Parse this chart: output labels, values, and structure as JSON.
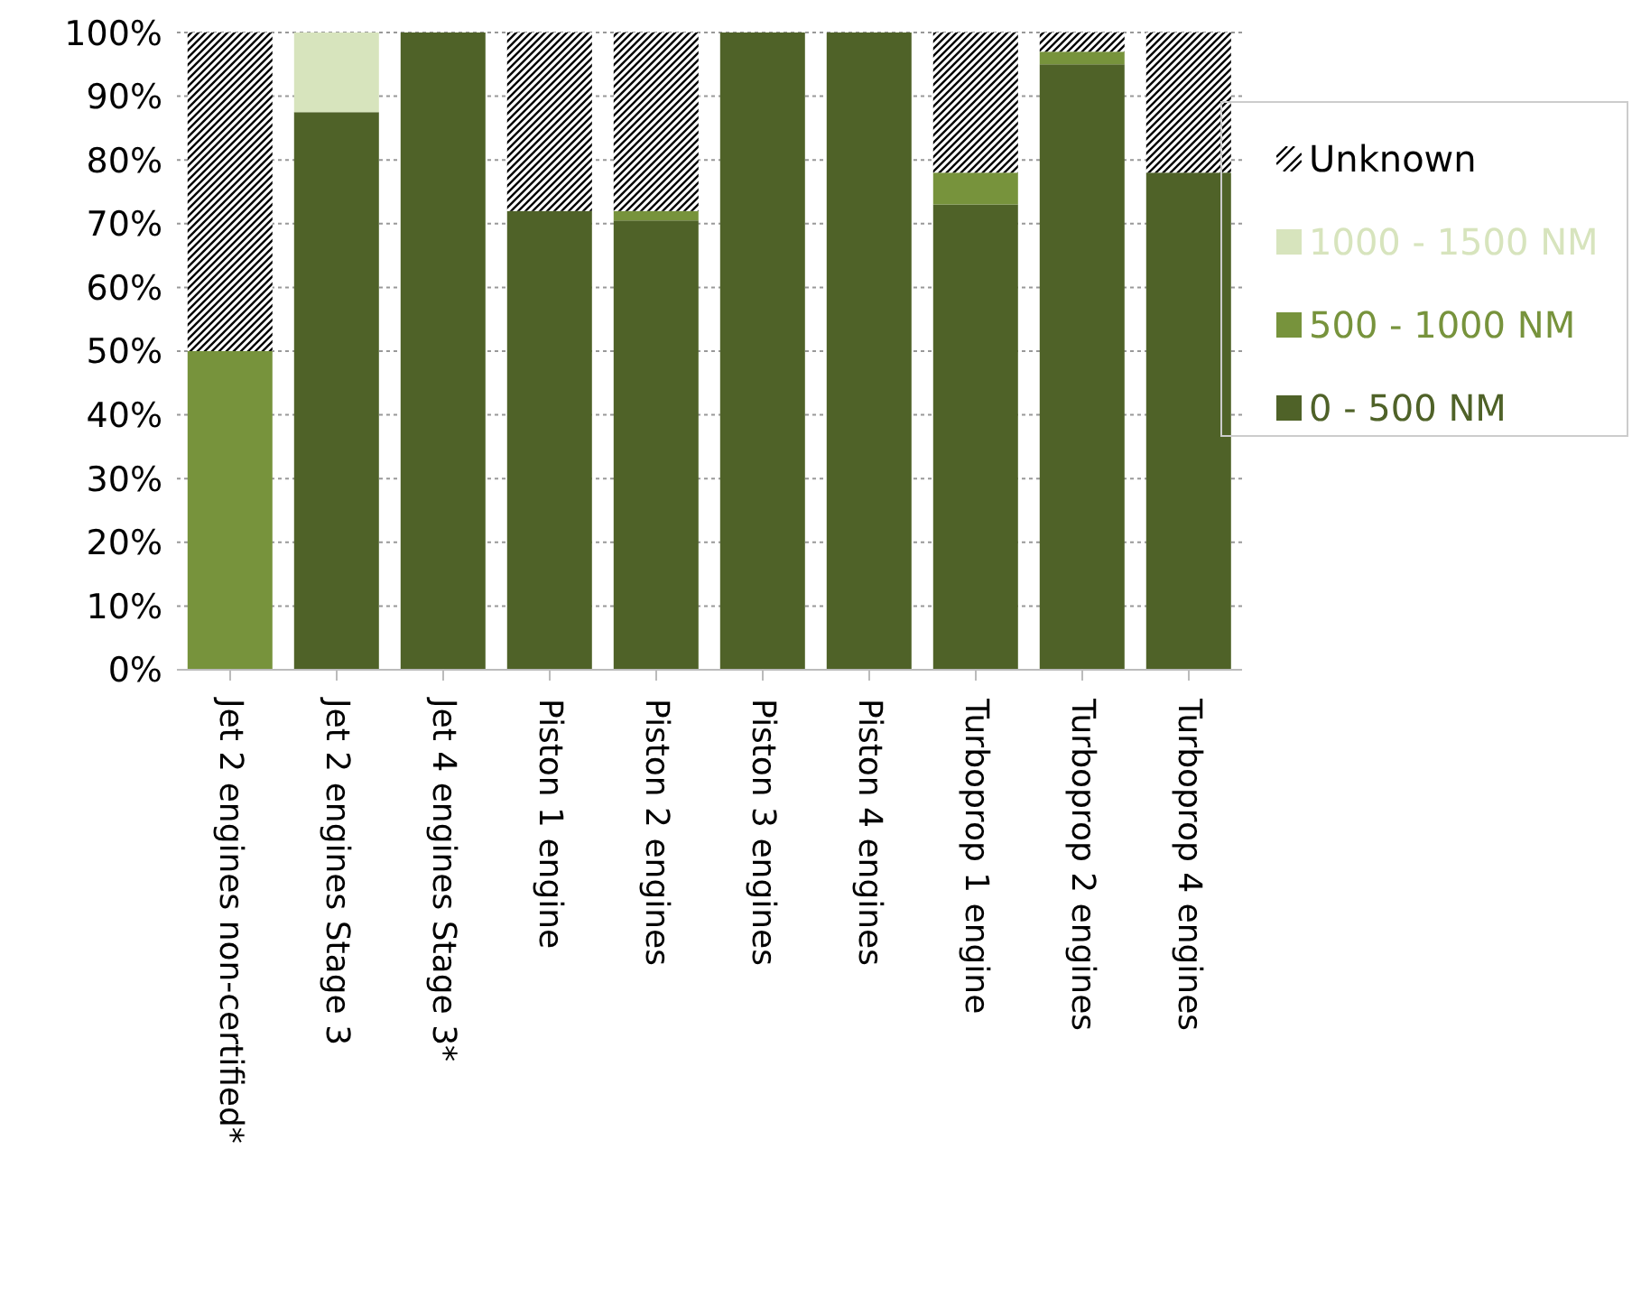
{
  "chart_data": {
    "type": "bar",
    "stacked": true,
    "categories": [
      "Jet 2 engines non-certified*",
      "Jet 2 engines Stage 3",
      "Jet 4 engines Stage 3*",
      "Piston 1 engine",
      "Piston 2 engines",
      "Piston 3 engines",
      "Piston 4 engines",
      "Turboprop 1 engine",
      "Turboprop 2 engines",
      "Turboprop 4 engines"
    ],
    "series": [
      {
        "name": "0 - 500 NM",
        "color": "#4f6228",
        "values": [
          0,
          87.5,
          100,
          72,
          70.5,
          100,
          100,
          73,
          95,
          78
        ]
      },
      {
        "name": "500 - 1000 NM",
        "color": "#77933c",
        "values": [
          50,
          0,
          0,
          0,
          1.5,
          0,
          0,
          5,
          2,
          0
        ]
      },
      {
        "name": "1000 - 1500 NM",
        "color": "#d7e4bd",
        "values": [
          0,
          12.5,
          0,
          0,
          0,
          0,
          0,
          0,
          0,
          0
        ]
      },
      {
        "name": "Unknown",
        "color": "#000000",
        "values": [
          50,
          0,
          0,
          28,
          28,
          0,
          0,
          22,
          3,
          22
        ]
      }
    ],
    "ylim": [
      0,
      100
    ],
    "yticks": [
      {
        "value": 0,
        "label": "0%"
      },
      {
        "value": 10,
        "label": "10%"
      },
      {
        "value": 20,
        "label": "20%"
      },
      {
        "value": 30,
        "label": "30%"
      },
      {
        "value": 40,
        "label": "40%"
      },
      {
        "value": 50,
        "label": "50%"
      },
      {
        "value": 60,
        "label": "60%"
      },
      {
        "value": 70,
        "label": "70%"
      },
      {
        "value": 80,
        "label": "80%"
      },
      {
        "value": 90,
        "label": "90%"
      },
      {
        "value": 100,
        "label": "100%"
      }
    ],
    "grid": "y",
    "legend": "right"
  }
}
